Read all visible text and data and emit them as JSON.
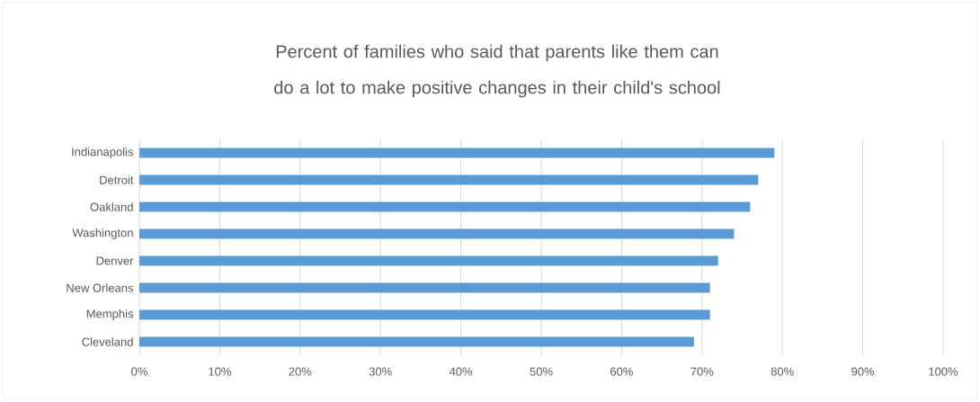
{
  "chart_data": {
    "type": "bar",
    "orientation": "horizontal",
    "title": "Percent of families who said that parents like them can do a lot to make positive changes in their child's school",
    "categories": [
      "Indianapolis",
      "Detroit",
      "Oakland",
      "Washington",
      "Denver",
      "New Orleans",
      "Memphis",
      "Cleveland"
    ],
    "values": [
      79,
      77,
      76,
      74,
      72,
      71,
      71,
      69
    ],
    "color": "#5b9bd5",
    "xlim": [
      0,
      100
    ],
    "xticks": [
      {
        "value": 0,
        "label": "0%"
      },
      {
        "value": 10,
        "label": "10%"
      },
      {
        "value": 20,
        "label": "20%"
      },
      {
        "value": 30,
        "label": "30%"
      },
      {
        "value": 40,
        "label": "40%"
      },
      {
        "value": 50,
        "label": "50%"
      },
      {
        "value": 60,
        "label": "60%"
      },
      {
        "value": 70,
        "label": "70%"
      },
      {
        "value": 80,
        "label": "80%"
      },
      {
        "value": 90,
        "label": "90%"
      },
      {
        "value": 100,
        "label": "100%"
      }
    ],
    "grid": "x"
  }
}
